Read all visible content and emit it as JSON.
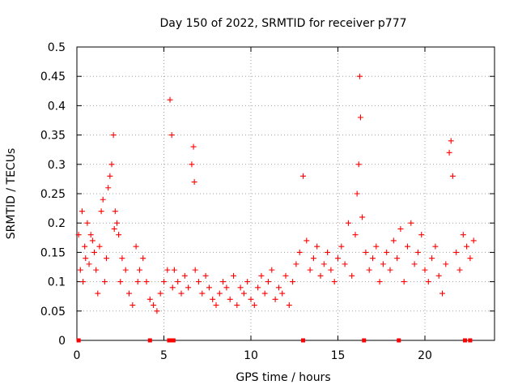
{
  "chart_data": {
    "type": "scatter",
    "title": "Day 150 of 2022, SRMTID for receiver p777",
    "xlabel": "GPS time / hours",
    "ylabel": "SRMTID / TECUs",
    "xlim": [
      0,
      24
    ],
    "ylim": [
      0,
      0.5
    ],
    "x_ticks": [
      0,
      5,
      10,
      15,
      20
    ],
    "y_ticks": [
      0,
      0.05,
      0.1,
      0.15,
      0.2,
      0.25,
      0.3,
      0.35,
      0.4,
      0.45,
      0.5
    ],
    "x_tick_labels": [
      "0",
      "5",
      "10",
      "15",
      "20"
    ],
    "y_tick_labels": [
      "0",
      "0.05",
      "0.1",
      "0.15",
      "0.2",
      "0.25",
      "0.3",
      "0.35",
      "0.4",
      "0.45",
      "0.5"
    ],
    "marker": "+",
    "grid": true,
    "series": [
      {
        "name": "SRMTID",
        "color": "#ff0000",
        "x": [
          0.1,
          0.2,
          0.3,
          0.35,
          0.45,
          0.5,
          0.6,
          0.7,
          0.8,
          0.9,
          1.0,
          1.1,
          1.2,
          1.3,
          1.4,
          1.5,
          1.6,
          1.7,
          1.8,
          1.9,
          2.0,
          2.1,
          2.15,
          2.2,
          2.3,
          2.4,
          2.5,
          2.6,
          2.8,
          3.0,
          3.2,
          3.4,
          3.5,
          3.6,
          3.8,
          4.0,
          4.2,
          4.4,
          4.6,
          4.8,
          5.0,
          5.2,
          5.35,
          5.45,
          5.5,
          5.6,
          5.8,
          6.0,
          6.2,
          6.4,
          6.6,
          6.7,
          6.75,
          6.8,
          7.0,
          7.2,
          7.4,
          7.6,
          7.8,
          8.0,
          8.2,
          8.4,
          8.6,
          8.8,
          9.0,
          9.2,
          9.4,
          9.6,
          9.8,
          10.0,
          10.2,
          10.4,
          10.6,
          10.8,
          11.0,
          11.2,
          11.4,
          11.6,
          11.8,
          12.0,
          12.2,
          12.4,
          12.6,
          12.8,
          13.0,
          13.2,
          13.4,
          13.6,
          13.8,
          14.0,
          14.2,
          14.4,
          14.6,
          14.8,
          15.0,
          15.2,
          15.4,
          15.6,
          15.8,
          16.0,
          16.1,
          16.2,
          16.25,
          16.3,
          16.4,
          16.6,
          16.8,
          17.0,
          17.2,
          17.4,
          17.6,
          17.8,
          18.0,
          18.2,
          18.4,
          18.6,
          18.8,
          19.0,
          19.2,
          19.4,
          19.6,
          19.8,
          20.0,
          20.2,
          20.4,
          20.6,
          20.8,
          21.0,
          21.2,
          21.4,
          21.5,
          21.6,
          21.8,
          22.0,
          22.2,
          22.4,
          22.6,
          22.8
        ],
        "y": [
          0.18,
          0.12,
          0.22,
          0.1,
          0.16,
          0.14,
          0.2,
          0.13,
          0.18,
          0.17,
          0.15,
          0.12,
          0.08,
          0.16,
          0.22,
          0.24,
          0.1,
          0.14,
          0.26,
          0.28,
          0.3,
          0.35,
          0.19,
          0.22,
          0.2,
          0.18,
          0.1,
          0.14,
          0.12,
          0.08,
          0.06,
          0.16,
          0.1,
          0.12,
          0.14,
          0.1,
          0.07,
          0.06,
          0.05,
          0.08,
          0.1,
          0.12,
          0.41,
          0.35,
          0.09,
          0.12,
          0.1,
          0.08,
          0.11,
          0.09,
          0.3,
          0.33,
          0.27,
          0.12,
          0.1,
          0.08,
          0.11,
          0.09,
          0.07,
          0.06,
          0.08,
          0.1,
          0.09,
          0.07,
          0.11,
          0.06,
          0.09,
          0.08,
          0.1,
          0.07,
          0.06,
          0.09,
          0.11,
          0.08,
          0.1,
          0.12,
          0.07,
          0.09,
          0.08,
          0.11,
          0.06,
          0.1,
          0.13,
          0.15,
          0.28,
          0.17,
          0.12,
          0.14,
          0.16,
          0.11,
          0.13,
          0.15,
          0.12,
          0.1,
          0.14,
          0.16,
          0.13,
          0.2,
          0.11,
          0.18,
          0.25,
          0.3,
          0.45,
          0.38,
          0.21,
          0.15,
          0.12,
          0.14,
          0.16,
          0.1,
          0.13,
          0.15,
          0.12,
          0.17,
          0.14,
          0.19,
          0.1,
          0.16,
          0.2,
          0.13,
          0.15,
          0.18,
          0.12,
          0.1,
          0.14,
          0.16,
          0.11,
          0.08,
          0.13,
          0.32,
          0.34,
          0.28,
          0.15,
          0.12,
          0.18,
          0.16,
          0.14,
          0.17
        ]
      }
    ],
    "axis_markers": {
      "color": "#ff0000",
      "x": [
        0.1,
        4.2,
        5.3,
        5.45,
        5.55,
        13.0,
        16.5,
        18.5,
        22.3,
        22.6
      ]
    }
  }
}
